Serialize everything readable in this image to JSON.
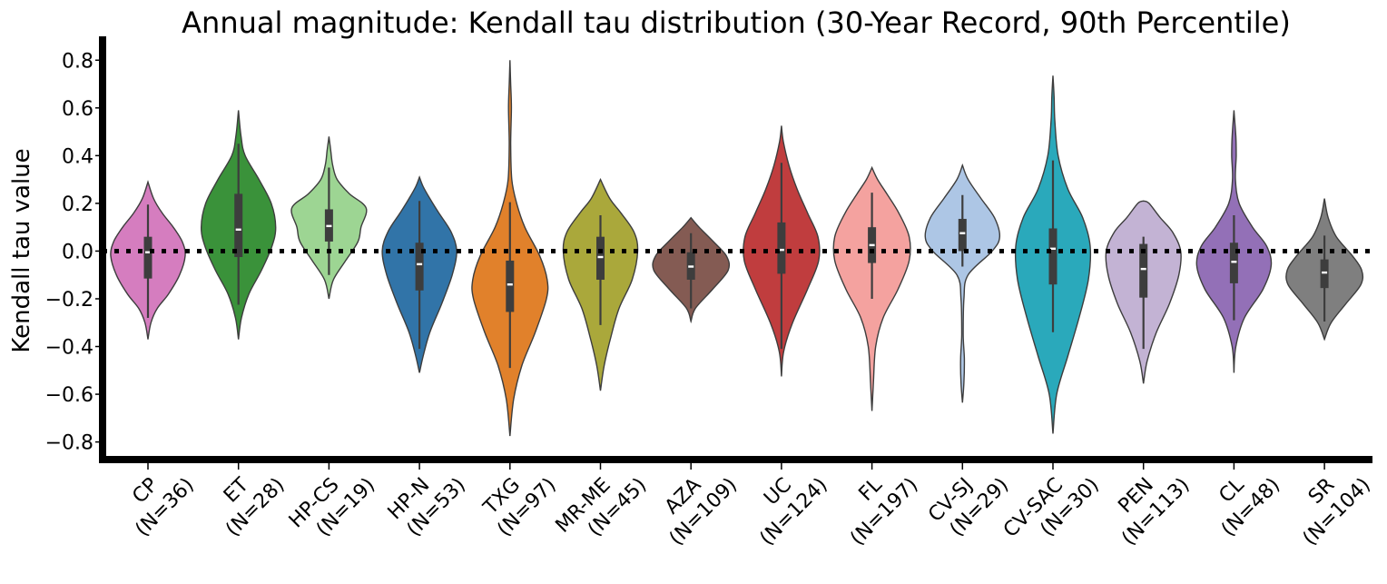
{
  "chart_data": {
    "type": "violin",
    "title": "Annual magnitude: Kendall tau distribution (30-Year Record, 90th Percentile)",
    "xlabel": "",
    "ylabel": "Kendall tau value",
    "ylim": [
      -0.87,
      0.9
    ],
    "yticks": [
      -0.8,
      -0.6,
      -0.4,
      -0.2,
      0.0,
      0.2,
      0.4,
      0.6,
      0.8
    ],
    "ytick_labels": [
      "−0.8",
      "−0.6",
      "−0.4",
      "−0.2",
      "0.0",
      "0.2",
      "0.4",
      "0.6",
      "0.8"
    ],
    "reference_line": 0.0,
    "grid": false,
    "categories": [
      {
        "name": "CP",
        "n_label": "(N=36)",
        "color": "#d57dbf",
        "min": -0.37,
        "max": 0.29,
        "q1": -0.115,
        "median": -0.005,
        "q3": 0.06,
        "whisker_low": -0.28,
        "whisker_high": 0.195,
        "density": [
          [
            -0.37,
            0.0
          ],
          [
            -0.3,
            0.08
          ],
          [
            -0.24,
            0.25
          ],
          [
            -0.18,
            0.55
          ],
          [
            -0.1,
            0.85
          ],
          [
            -0.02,
            1.0
          ],
          [
            0.04,
            0.92
          ],
          [
            0.1,
            0.68
          ],
          [
            0.16,
            0.38
          ],
          [
            0.22,
            0.15
          ],
          [
            0.29,
            0.0
          ]
        ]
      },
      {
        "name": "ET",
        "n_label": "(N=28)",
        "color": "#3a923a",
        "min": -0.37,
        "max": 0.59,
        "q1": -0.025,
        "median": 0.09,
        "q3": 0.24,
        "whisker_low": -0.225,
        "whisker_high": 0.45,
        "density": [
          [
            -0.37,
            0.0
          ],
          [
            -0.28,
            0.08
          ],
          [
            -0.18,
            0.28
          ],
          [
            -0.08,
            0.62
          ],
          [
            0.02,
            0.9
          ],
          [
            0.1,
            1.0
          ],
          [
            0.2,
            0.88
          ],
          [
            0.3,
            0.55
          ],
          [
            0.4,
            0.18
          ],
          [
            0.48,
            0.07
          ],
          [
            0.59,
            0.0
          ]
        ]
      },
      {
        "name": "HP-CS",
        "n_label": "(N=19)",
        "color": "#9dd593",
        "min": -0.2,
        "max": 0.48,
        "q1": 0.04,
        "median": 0.105,
        "q3": 0.175,
        "whisker_low": -0.1,
        "whisker_high": 0.35,
        "density": [
          [
            -0.2,
            0.0
          ],
          [
            -0.12,
            0.12
          ],
          [
            -0.04,
            0.45
          ],
          [
            0.04,
            0.78
          ],
          [
            0.1,
            0.86
          ],
          [
            0.18,
            1.0
          ],
          [
            0.24,
            0.55
          ],
          [
            0.3,
            0.22
          ],
          [
            0.36,
            0.1
          ],
          [
            0.42,
            0.05
          ],
          [
            0.48,
            0.0
          ]
        ]
      },
      {
        "name": "HP-N",
        "n_label": "(N=53)",
        "color": "#3174a8",
        "min": -0.51,
        "max": 0.31,
        "q1": -0.165,
        "median": -0.055,
        "q3": 0.035,
        "whisker_low": -0.41,
        "whisker_high": 0.21,
        "density": [
          [
            -0.51,
            0.0
          ],
          [
            -0.44,
            0.1
          ],
          [
            -0.34,
            0.28
          ],
          [
            -0.22,
            0.6
          ],
          [
            -0.1,
            0.88
          ],
          [
            0.0,
            1.0
          ],
          [
            0.08,
            0.85
          ],
          [
            0.16,
            0.52
          ],
          [
            0.22,
            0.28
          ],
          [
            0.27,
            0.1
          ],
          [
            0.31,
            0.0
          ]
        ]
      },
      {
        "name": "TXG",
        "n_label": "(N=97)",
        "color": "#e1812b",
        "min": -0.775,
        "max": 0.8,
        "q1": -0.255,
        "median": -0.14,
        "q3": -0.04,
        "whisker_low": -0.49,
        "whisker_high": 0.205,
        "density": [
          [
            -0.775,
            0.0
          ],
          [
            -0.62,
            0.1
          ],
          [
            -0.48,
            0.32
          ],
          [
            -0.34,
            0.68
          ],
          [
            -0.2,
            0.98
          ],
          [
            -0.12,
            1.0
          ],
          [
            -0.02,
            0.8
          ],
          [
            0.1,
            0.4
          ],
          [
            0.2,
            0.18
          ],
          [
            0.3,
            0.05
          ],
          [
            0.45,
            0.02
          ],
          [
            0.6,
            0.04
          ],
          [
            0.7,
            0.02
          ],
          [
            0.8,
            0.0
          ]
        ]
      },
      {
        "name": "MR-ME",
        "n_label": "(N=45)",
        "color": "#aaa83b",
        "min": -0.585,
        "max": 0.3,
        "q1": -0.12,
        "median": -0.025,
        "q3": 0.06,
        "whisker_low": -0.31,
        "whisker_high": 0.15,
        "density": [
          [
            -0.585,
            0.0
          ],
          [
            -0.48,
            0.1
          ],
          [
            -0.36,
            0.28
          ],
          [
            -0.24,
            0.5
          ],
          [
            -0.12,
            0.85
          ],
          [
            0.0,
            1.0
          ],
          [
            0.08,
            0.9
          ],
          [
            0.16,
            0.55
          ],
          [
            0.22,
            0.25
          ],
          [
            0.3,
            0.0
          ]
        ]
      },
      {
        "name": "AZA",
        "n_label": "(N=109)",
        "color": "#845b53",
        "min": -0.295,
        "max": 0.14,
        "q1": -0.12,
        "median": -0.065,
        "q3": -0.005,
        "whisker_low": -0.24,
        "whisker_high": 0.075,
        "density": [
          [
            -0.295,
            0.0
          ],
          [
            -0.24,
            0.12
          ],
          [
            -0.16,
            0.58
          ],
          [
            -0.08,
            1.0
          ],
          [
            -0.02,
            0.95
          ],
          [
            0.04,
            0.6
          ],
          [
            0.1,
            0.22
          ],
          [
            0.14,
            0.0
          ]
        ]
      },
      {
        "name": "UC",
        "n_label": "(N=124)",
        "color": "#c03d3e",
        "min": -0.525,
        "max": 0.525,
        "q1": -0.095,
        "median": 0.005,
        "q3": 0.12,
        "whisker_low": -0.41,
        "whisker_high": 0.37,
        "density": [
          [
            -0.525,
            0.0
          ],
          [
            -0.42,
            0.06
          ],
          [
            -0.3,
            0.3
          ],
          [
            -0.16,
            0.7
          ],
          [
            -0.04,
            1.0
          ],
          [
            0.06,
            0.98
          ],
          [
            0.16,
            0.7
          ],
          [
            0.26,
            0.42
          ],
          [
            0.36,
            0.2
          ],
          [
            0.46,
            0.05
          ],
          [
            0.525,
            0.0
          ]
        ]
      },
      {
        "name": "FL",
        "n_label": "(N=197)",
        "color": "#f4a29f",
        "min": -0.67,
        "max": 0.35,
        "q1": -0.05,
        "median": 0.025,
        "q3": 0.1,
        "whisker_low": -0.2,
        "whisker_high": 0.245,
        "density": [
          [
            -0.67,
            0.0
          ],
          [
            -0.55,
            0.04
          ],
          [
            -0.4,
            0.1
          ],
          [
            -0.28,
            0.3
          ],
          [
            -0.16,
            0.7
          ],
          [
            -0.04,
            1.0
          ],
          [
            0.06,
            1.0
          ],
          [
            0.16,
            0.72
          ],
          [
            0.24,
            0.4
          ],
          [
            0.3,
            0.15
          ],
          [
            0.35,
            0.0
          ]
        ]
      },
      {
        "name": "CV-SJ",
        "n_label": "(N=29)",
        "color": "#adc6e5",
        "min": -0.635,
        "max": 0.36,
        "q1": 0.0,
        "median": 0.075,
        "q3": 0.135,
        "whisker_low": -0.065,
        "whisker_high": 0.235,
        "density": [
          [
            -0.635,
            0.0
          ],
          [
            -0.55,
            0.04
          ],
          [
            -0.45,
            0.05
          ],
          [
            -0.35,
            0.02
          ],
          [
            -0.2,
            0.04
          ],
          [
            -0.1,
            0.15
          ],
          [
            0.0,
            0.8
          ],
          [
            0.06,
            1.0
          ],
          [
            0.14,
            0.86
          ],
          [
            0.22,
            0.5
          ],
          [
            0.3,
            0.15
          ],
          [
            0.36,
            0.0
          ]
        ]
      },
      {
        "name": "CV-SAC",
        "n_label": "(N=30)",
        "color": "#2aa9bb",
        "min": -0.765,
        "max": 0.735,
        "q1": -0.14,
        "median": 0.01,
        "q3": 0.095,
        "whisker_low": -0.34,
        "whisker_high": 0.38,
        "density": [
          [
            -0.765,
            0.0
          ],
          [
            -0.6,
            0.1
          ],
          [
            -0.44,
            0.4
          ],
          [
            -0.28,
            0.7
          ],
          [
            -0.12,
            0.95
          ],
          [
            0.02,
            1.0
          ],
          [
            0.14,
            0.8
          ],
          [
            0.26,
            0.4
          ],
          [
            0.4,
            0.14
          ],
          [
            0.55,
            0.05
          ],
          [
            0.65,
            0.03
          ],
          [
            0.735,
            0.0
          ]
        ]
      },
      {
        "name": "PEN",
        "n_label": "(N=113)",
        "color": "#c3b3d4",
        "min": -0.555,
        "max": 0.21,
        "q1": -0.195,
        "median": -0.075,
        "q3": 0.03,
        "whisker_low": -0.41,
        "whisker_high": 0.06,
        "density": [
          [
            -0.555,
            0.0
          ],
          [
            -0.46,
            0.1
          ],
          [
            -0.34,
            0.35
          ],
          [
            -0.22,
            0.7
          ],
          [
            -0.1,
            0.95
          ],
          [
            0.0,
            1.0
          ],
          [
            0.08,
            0.78
          ],
          [
            0.14,
            0.45
          ],
          [
            0.2,
            0.15
          ],
          [
            0.21,
            0.0
          ]
        ]
      },
      {
        "name": "CL",
        "n_label": "(N=48)",
        "color": "#9370b7",
        "min": -0.51,
        "max": 0.59,
        "q1": -0.135,
        "median": -0.045,
        "q3": 0.035,
        "whisker_low": -0.29,
        "whisker_high": 0.15,
        "density": [
          [
            -0.51,
            0.0
          ],
          [
            -0.4,
            0.05
          ],
          [
            -0.28,
            0.28
          ],
          [
            -0.16,
            0.78
          ],
          [
            -0.06,
            1.0
          ],
          [
            0.02,
            0.88
          ],
          [
            0.1,
            0.5
          ],
          [
            0.2,
            0.14
          ],
          [
            0.3,
            0.04
          ],
          [
            0.4,
            0.06
          ],
          [
            0.48,
            0.05
          ],
          [
            0.59,
            0.0
          ]
        ]
      },
      {
        "name": "SR",
        "n_label": "(N=104)",
        "color": "#7f7f7f",
        "min": -0.37,
        "max": 0.22,
        "q1": -0.155,
        "median": -0.09,
        "q3": -0.035,
        "whisker_low": -0.295,
        "whisker_high": 0.065,
        "density": [
          [
            -0.37,
            0.0
          ],
          [
            -0.3,
            0.18
          ],
          [
            -0.22,
            0.58
          ],
          [
            -0.14,
            0.98
          ],
          [
            -0.08,
            1.0
          ],
          [
            -0.02,
            0.75
          ],
          [
            0.06,
            0.32
          ],
          [
            0.14,
            0.1
          ],
          [
            0.22,
            0.0
          ]
        ]
      }
    ]
  }
}
